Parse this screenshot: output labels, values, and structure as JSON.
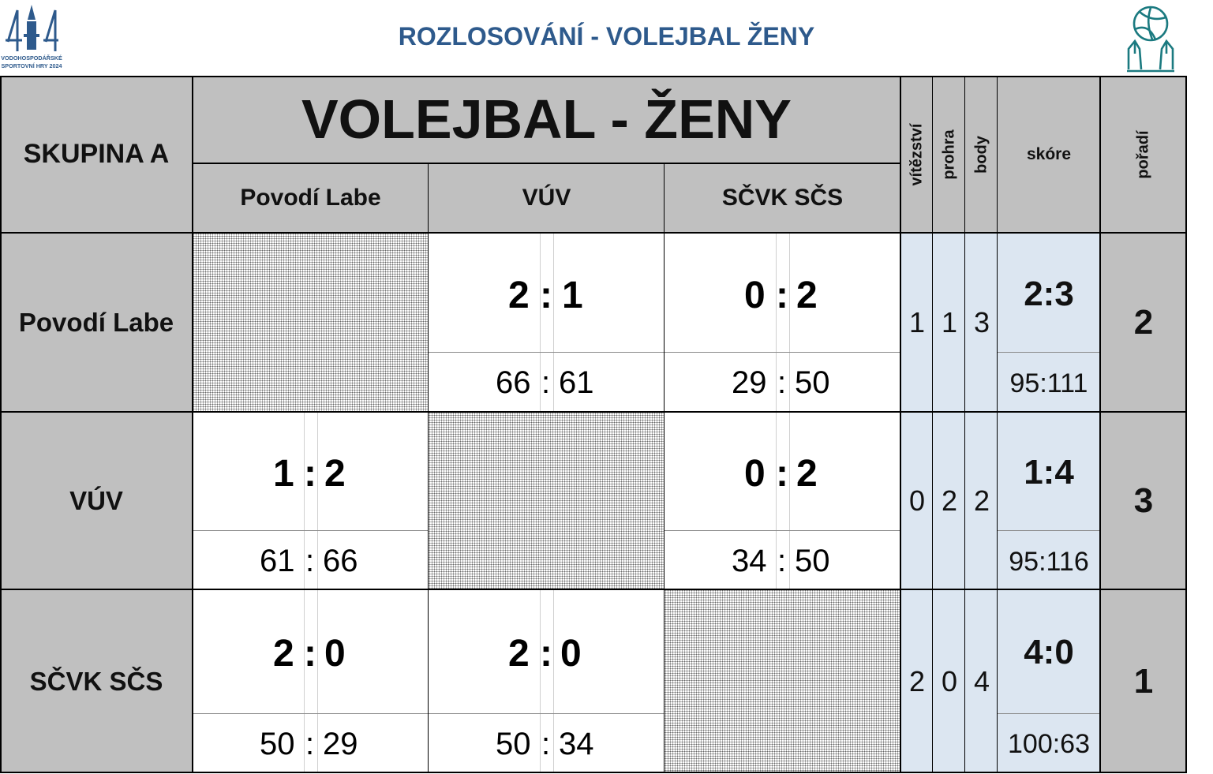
{
  "header": {
    "title": "ROZLOSOVÁNÍ - VOLEJBAL ŽENY",
    "left_logo_text_line1": "VODOHOSPODÁŘSKÉ",
    "left_logo_text_line2": "SPORTOVNÍ HRY 2024",
    "right_logo_icon": "volleyball-hands-icon"
  },
  "table": {
    "group_label": "SKUPINA A",
    "main_title": "VOLEJBAL - ŽENY",
    "columns": [
      "Povodí Labe",
      "VÚV",
      "SČVK SČS"
    ],
    "stat_headers": {
      "wins": "vítězství",
      "losses": "prohra",
      "points": "body",
      "score": "skóre",
      "rank": "pořadí"
    },
    "rows": [
      {
        "team": "Povodí Labe",
        "matches": [
          null,
          {
            "sets_home": "2",
            "sets_away": "1",
            "pts_home": "66",
            "pts_away": "61"
          },
          {
            "sets_home": "0",
            "sets_away": "2",
            "pts_home": "29",
            "pts_away": "50"
          }
        ],
        "wins": "1",
        "losses": "1",
        "points": "3",
        "score_sets": "2:3",
        "score_points": "95:111",
        "rank": "2"
      },
      {
        "team": "VÚV",
        "matches": [
          {
            "sets_home": "1",
            "sets_away": "2",
            "pts_home": "61",
            "pts_away": "66"
          },
          null,
          {
            "sets_home": "0",
            "sets_away": "2",
            "pts_home": "34",
            "pts_away": "50"
          }
        ],
        "wins": "0",
        "losses": "2",
        "points": "2",
        "score_sets": "1:4",
        "score_points": "95:116",
        "rank": "3"
      },
      {
        "team": "SČVK SČS",
        "matches": [
          {
            "sets_home": "2",
            "sets_away": "0",
            "pts_home": "50",
            "pts_away": "29"
          },
          {
            "sets_home": "2",
            "sets_away": "0",
            "pts_home": "50",
            "pts_away": "34"
          },
          null
        ],
        "wins": "2",
        "losses": "0",
        "points": "4",
        "score_sets": "4:0",
        "score_points": "100:63",
        "rank": "1"
      }
    ],
    "separator": ":"
  }
}
